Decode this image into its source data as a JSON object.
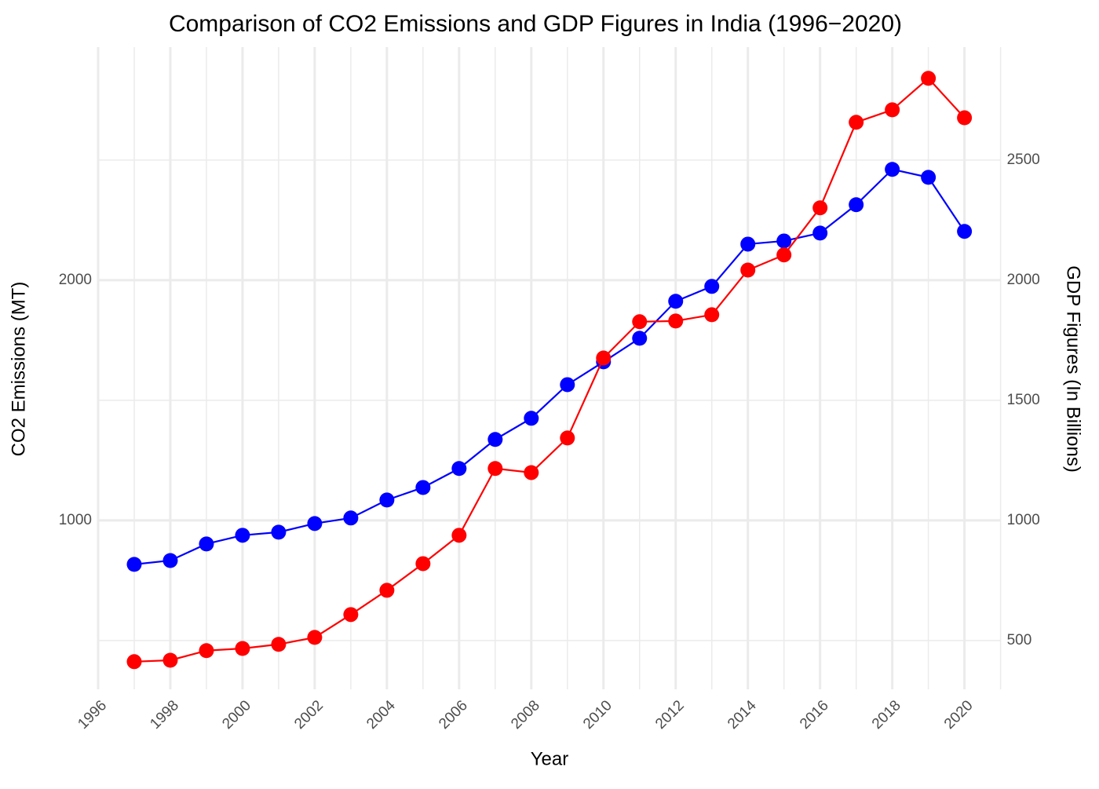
{
  "chart_data": {
    "type": "line",
    "title": "Comparison of CO2 Emissions and GDP Figures in India (1996−2020)",
    "x_label": "Year",
    "y_label": "CO2 Emissions (MT)",
    "y2_label": "GDP Figures (In Billions)",
    "x": [
      1997,
      1998,
      1999,
      2000,
      2001,
      2002,
      2003,
      2004,
      2005,
      2006,
      2007,
      2008,
      2009,
      2010,
      2011,
      2012,
      2013,
      2014,
      2015,
      2016,
      2017,
      2018,
      2019,
      2020
    ],
    "series": [
      {
        "color": "#0000ff",
        "axis": "y",
        "values": [
          817,
          833,
          902,
          938,
          951,
          987,
          1010,
          1085,
          1137,
          1216,
          1337,
          1425,
          1565,
          1660,
          1758,
          1912,
          1974,
          2150,
          2163,
          2196,
          2314,
          2461,
          2428,
          2203
        ]
      },
      {
        "color": "#ff0000",
        "axis": "y2",
        "values": [
          412,
          418,
          458,
          467,
          484,
          513,
          608,
          709,
          820,
          938,
          1216,
          1199,
          1343,
          1676,
          1827,
          1830,
          1856,
          2042,
          2105,
          2301,
          2657,
          2709,
          2840,
          2676
        ]
      }
    ],
    "xlim": [
      1996,
      2021
    ],
    "xticks": [
      1996,
      1998,
      2000,
      2002,
      2004,
      2006,
      2008,
      2010,
      2012,
      2014,
      2016,
      2018,
      2020
    ],
    "ylim": [
      297,
      2970
    ],
    "yticks": [
      1000,
      2000
    ],
    "y2lim": [
      297,
      2970
    ],
    "y2ticks": [
      500,
      1000,
      1500,
      2000,
      2500
    ],
    "grid": true
  }
}
